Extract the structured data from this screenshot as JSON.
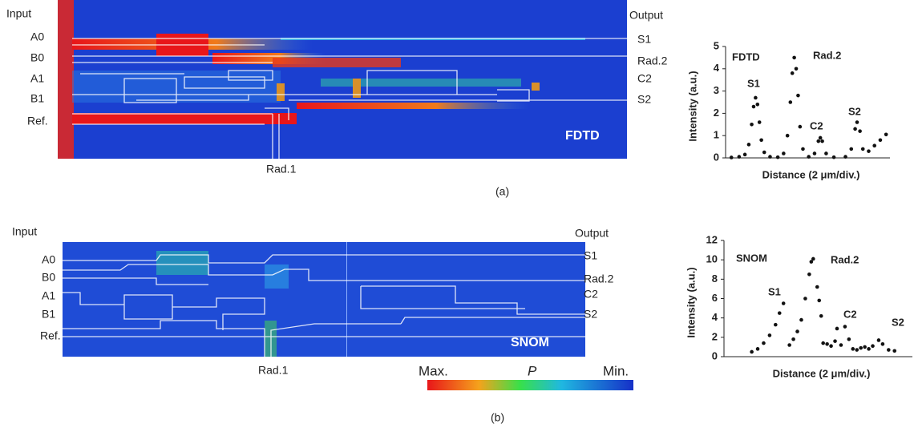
{
  "panel_a": {
    "input": "Input",
    "output": "Output",
    "ports_in": [
      "A0",
      "B0",
      "A1",
      "B1",
      "Ref."
    ],
    "ports_out": [
      "S1",
      "Rad.2",
      "C2",
      "S2"
    ],
    "bottom": "Rad.1",
    "method": "FDTD",
    "caption": "(a)"
  },
  "panel_b": {
    "input": "Input",
    "output": "Output",
    "ports_in": [
      "A0",
      "B0",
      "A1",
      "B1",
      "Ref."
    ],
    "ports_out": [
      "S1",
      "Rad.2",
      "C2",
      "S2"
    ],
    "bottom": "Rad.1",
    "method": "SNOM",
    "caption": "(b)",
    "colorbar": {
      "max": "Max.",
      "quantity": "P",
      "min": "Min."
    }
  },
  "chart_data": [
    {
      "type": "scatter",
      "ylabel": "Intensity (a.u.)",
      "xlabel": "Distance  (2 μm/div.)",
      "annotations": [
        "FDTD",
        "S1",
        "Rad.2",
        "C2",
        "S2"
      ],
      "color": "#111111",
      "xlim": [
        0,
        8.5
      ],
      "ylim": [
        0,
        5
      ],
      "yticks": [
        0,
        1,
        2,
        3,
        4,
        5
      ],
      "x": [
        0.3,
        0.7,
        1.0,
        1.2,
        1.35,
        1.45,
        1.55,
        1.65,
        1.75,
        1.85,
        2.0,
        2.3,
        2.7,
        3.0,
        3.2,
        3.35,
        3.45,
        3.55,
        3.65,
        3.75,
        3.85,
        4.0,
        4.3,
        4.6,
        4.8,
        4.9,
        5.0,
        5.2,
        5.6,
        6.2,
        6.5,
        6.7,
        6.8,
        6.95,
        7.1,
        7.4,
        7.7,
        8.0,
        8.3
      ],
      "values": [
        0.02,
        0.05,
        0.15,
        0.6,
        1.5,
        2.3,
        2.7,
        2.4,
        1.6,
        0.8,
        0.25,
        0.05,
        0.03,
        0.2,
        1.0,
        2.5,
        3.8,
        4.5,
        4.0,
        2.8,
        1.4,
        0.4,
        0.05,
        0.2,
        0.75,
        0.9,
        0.75,
        0.2,
        0.03,
        0.05,
        0.4,
        1.3,
        1.6,
        1.2,
        0.4,
        0.3,
        0.55,
        0.8,
        1.05
      ]
    },
    {
      "type": "scatter",
      "ylabel": "Intensity (a.u.)",
      "xlabel": "Distance  (2 μm/div.)",
      "annotations": [
        "SNOM",
        "S1",
        "Rad.2",
        "C2",
        "S2"
      ],
      "color": "#111111",
      "xlim": [
        0,
        9.5
      ],
      "ylim": [
        0,
        12
      ],
      "yticks": [
        0,
        2,
        4,
        6,
        8,
        10,
        12
      ],
      "x": [
        1.4,
        1.7,
        2.0,
        2.3,
        2.6,
        2.8,
        3.0,
        3.3,
        3.5,
        3.7,
        3.9,
        4.1,
        4.3,
        4.4,
        4.5,
        4.7,
        4.8,
        4.9,
        5.0,
        5.2,
        5.4,
        5.6,
        5.7,
        5.9,
        6.1,
        6.3,
        6.5,
        6.7,
        6.9,
        7.1,
        7.3,
        7.5,
        7.8,
        8.0,
        8.3,
        8.6
      ],
      "values": [
        0.5,
        0.8,
        1.4,
        2.2,
        3.3,
        4.5,
        5.5,
        1.2,
        1.8,
        2.6,
        3.8,
        6.0,
        8.5,
        9.8,
        10.1,
        7.2,
        5.8,
        4.2,
        1.4,
        1.3,
        1.1,
        1.6,
        2.9,
        1.2,
        3.1,
        1.8,
        0.8,
        0.7,
        0.9,
        1.0,
        0.8,
        1.1,
        1.7,
        1.3,
        0.7,
        0.6
      ]
    }
  ]
}
